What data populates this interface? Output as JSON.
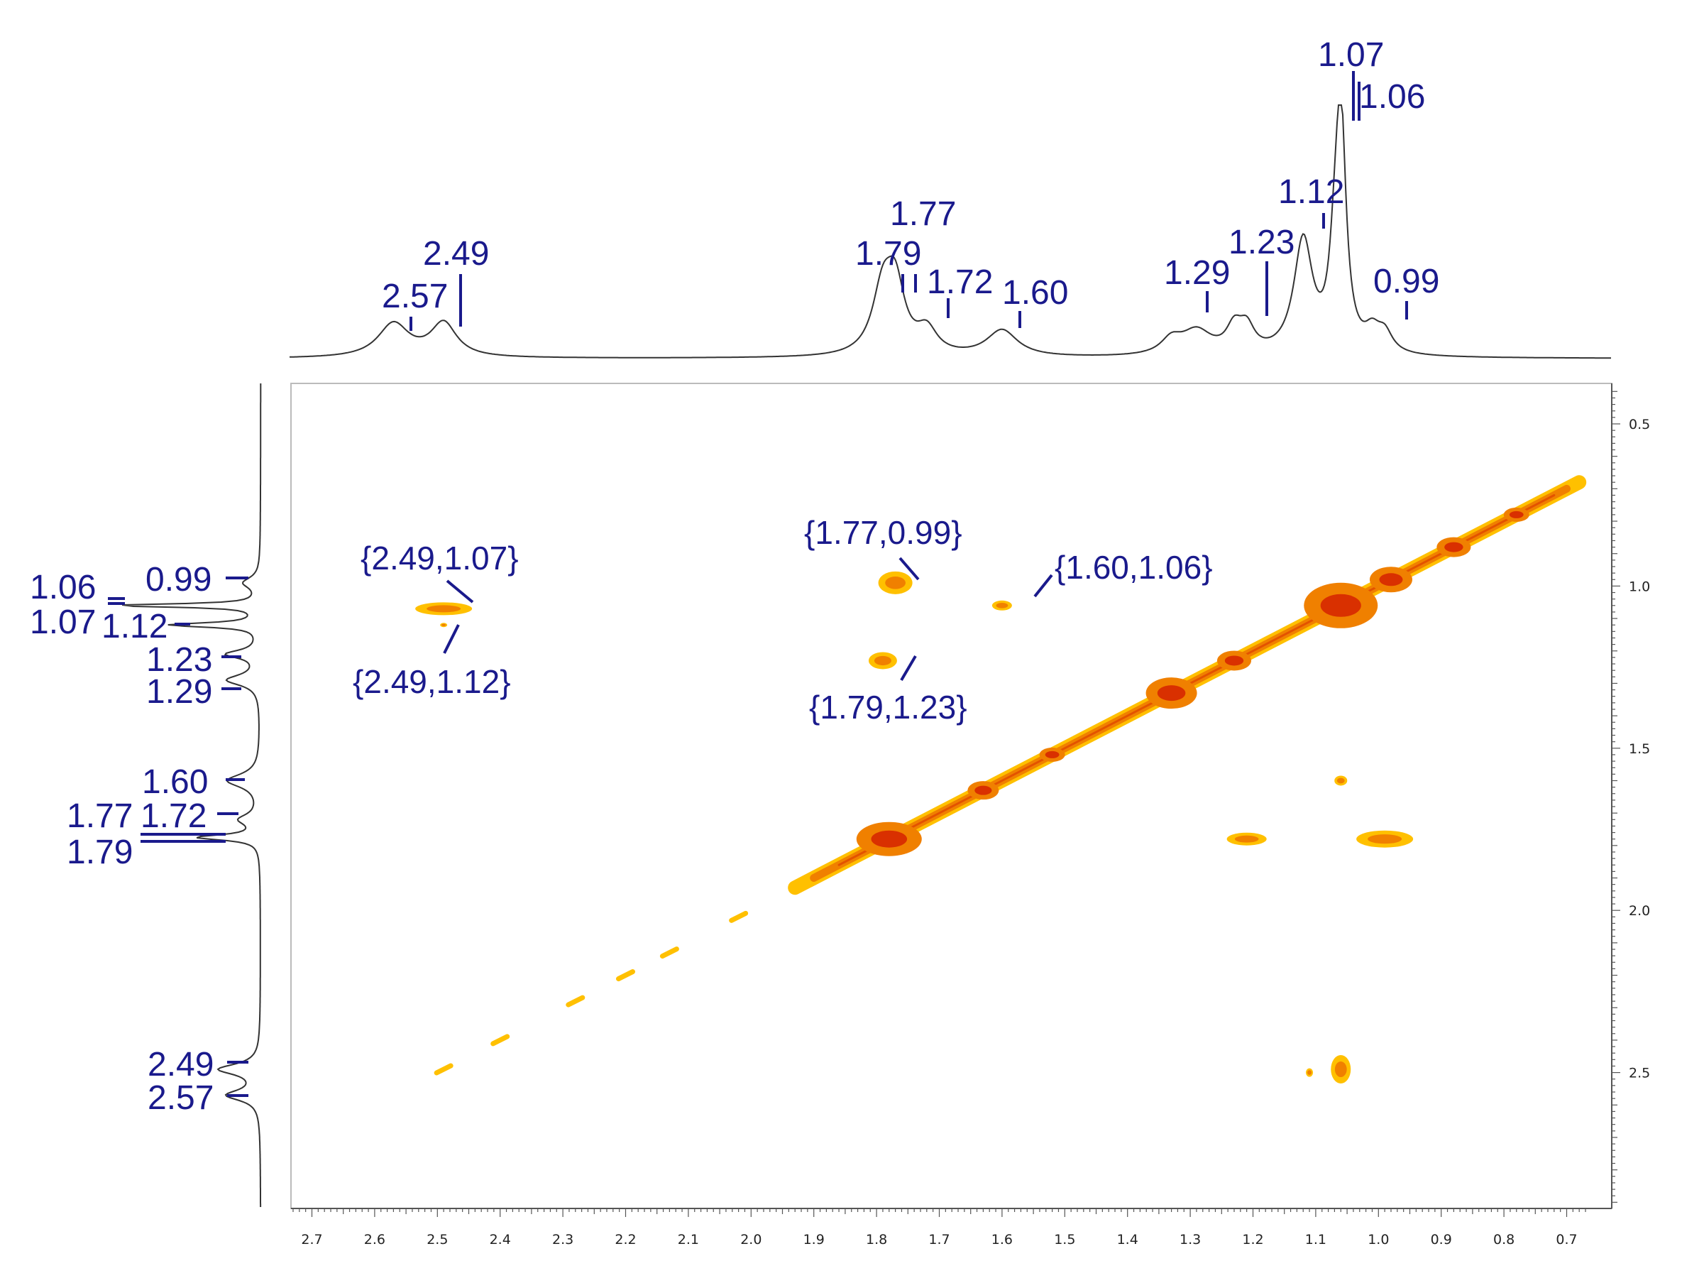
{
  "chart_data": {
    "type": "heatmap",
    "subtype": "2D COSY NMR contour plot with 1D projections",
    "x_axis": {
      "reversed": true,
      "range": [
        2.78,
        0.67
      ],
      "ticks": [
        2.7,
        2.6,
        2.5,
        2.4,
        2.3,
        2.2,
        2.1,
        2.0,
        1.9,
        1.8,
        1.7,
        1.6,
        1.5,
        1.4,
        1.3,
        1.2,
        1.1,
        1.0,
        0.9,
        0.8,
        0.7
      ],
      "tick_labels": [
        "2.7",
        "2.6",
        "2.5",
        "2.4",
        "2.3",
        "2.2",
        "2.1",
        "2.0",
        "1.9",
        "1.8",
        "1.7",
        "1.6",
        "1.5",
        "1.4",
        "1.3",
        "1.2",
        "1.1",
        "1.0",
        "0.9",
        "0.8",
        "0.7"
      ]
    },
    "y_axis": {
      "reversed": true,
      "position": "right",
      "range": [
        0.4,
        2.95
      ],
      "ticks": [
        0.5,
        1.0,
        1.5,
        2.0,
        2.5
      ],
      "tick_labels": [
        "0.5",
        "1.0",
        "1.5",
        "2.0",
        "2.5"
      ]
    },
    "top_projection": {
      "peaks": [
        {
          "ppm": 2.57,
          "height": 0.14,
          "width": 0.03
        },
        {
          "ppm": 2.49,
          "height": 0.14,
          "width": 0.025
        },
        {
          "ppm": 1.79,
          "height": 0.26,
          "width": 0.02
        },
        {
          "ppm": 1.77,
          "height": 0.26,
          "width": 0.018
        },
        {
          "ppm": 1.72,
          "height": 0.1,
          "width": 0.02
        },
        {
          "ppm": 1.6,
          "height": 0.11,
          "width": 0.03
        },
        {
          "ppm": 1.33,
          "height": 0.06,
          "width": 0.02
        },
        {
          "ppm": 1.29,
          "height": 0.1,
          "width": 0.03
        },
        {
          "ppm": 1.23,
          "height": 0.1,
          "width": 0.015
        },
        {
          "ppm": 1.21,
          "height": 0.1,
          "width": 0.015
        },
        {
          "ppm": 1.12,
          "height": 0.47,
          "width": 0.018
        },
        {
          "ppm": 1.07,
          "height": 0.25,
          "width": 0.01
        },
        {
          "ppm": 1.06,
          "height": 0.95,
          "width": 0.01
        },
        {
          "ppm": 1.01,
          "height": 0.08,
          "width": 0.015
        },
        {
          "ppm": 0.99,
          "height": 0.08,
          "width": 0.015
        }
      ],
      "labels": [
        {
          "text": "2.57",
          "ppm": 2.57
        },
        {
          "text": "2.49",
          "ppm": 2.49
        },
        {
          "text": "1.79",
          "ppm": 1.79
        },
        {
          "text": "1.77",
          "ppm": 1.77
        },
        {
          "text": "1.72",
          "ppm": 1.72
        },
        {
          "text": "1.60",
          "ppm": 1.6
        },
        {
          "text": "1.29",
          "ppm": 1.29
        },
        {
          "text": "1.23",
          "ppm": 1.23
        },
        {
          "text": "1.12",
          "ppm": 1.12
        },
        {
          "text": "1.07",
          "ppm": 1.07
        },
        {
          "text": "1.06",
          "ppm": 1.06
        },
        {
          "text": "0.99",
          "ppm": 0.99
        }
      ]
    },
    "left_projection": {
      "labels": [
        {
          "text": "0.99",
          "ppm": 0.99
        },
        {
          "text": "1.06",
          "ppm": 1.06
        },
        {
          "text": "1.07",
          "ppm": 1.07
        },
        {
          "text": "1.12",
          "ppm": 1.12
        },
        {
          "text": "1.23",
          "ppm": 1.23
        },
        {
          "text": "1.29",
          "ppm": 1.29
        },
        {
          "text": "1.60",
          "ppm": 1.6
        },
        {
          "text": "1.72",
          "ppm": 1.72
        },
        {
          "text": "1.77",
          "ppm": 1.77
        },
        {
          "text": "1.79",
          "ppm": 1.79
        },
        {
          "text": "2.49",
          "ppm": 2.49
        },
        {
          "text": "2.57",
          "ppm": 2.57
        }
      ]
    },
    "diagonal": {
      "from": [
        1.93,
        1.93
      ],
      "to": [
        0.68,
        0.68
      ]
    },
    "cross_peaks": [
      {
        "x": 2.49,
        "y": 1.07,
        "label": "{2.49,1.07}"
      },
      {
        "x": 2.49,
        "y": 1.12,
        "label": "{2.49,1.12}"
      },
      {
        "x": 1.77,
        "y": 0.99,
        "label": "{1.77,0.99}"
      },
      {
        "x": 1.79,
        "y": 1.23,
        "label": "{1.79,1.23}"
      },
      {
        "x": 1.6,
        "y": 1.06,
        "label": "{1.60,1.06}"
      },
      {
        "x": 1.06,
        "y": 1.6,
        "label": ""
      },
      {
        "x": 1.21,
        "y": 1.78,
        "label": ""
      },
      {
        "x": 0.99,
        "y": 1.78,
        "label": ""
      },
      {
        "x": 1.06,
        "y": 2.49,
        "label": ""
      },
      {
        "x": 1.11,
        "y": 2.5,
        "label": ""
      }
    ],
    "colors": {
      "contour_high": "#d93000",
      "contour_mid": "#f08000",
      "contour_low": "#ffc000",
      "label": "#1a1a8c"
    },
    "grid": false
  }
}
